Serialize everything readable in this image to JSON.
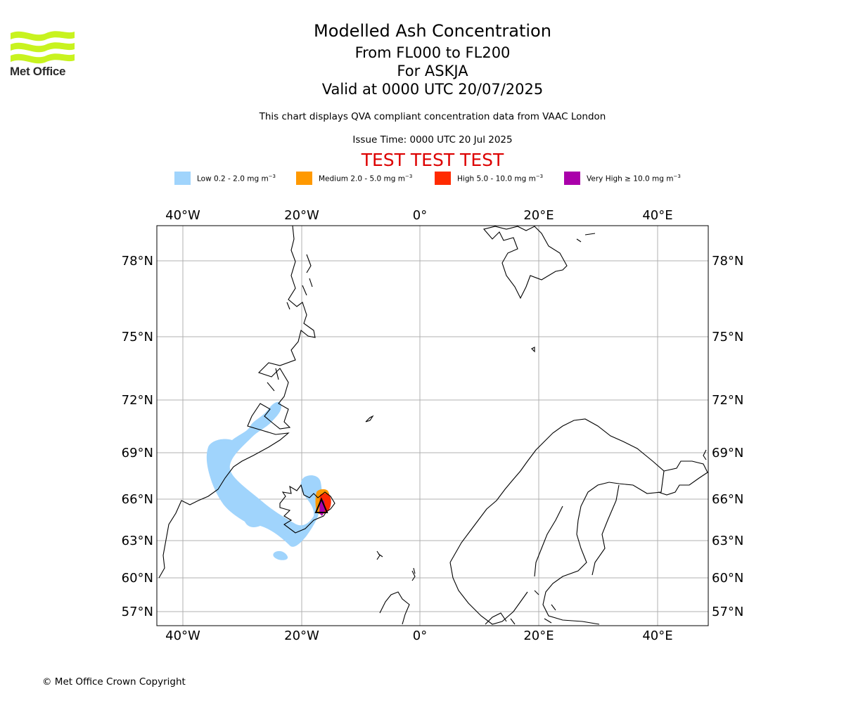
{
  "brand": {
    "name": "Met Office",
    "logo_color": "#c8f31f"
  },
  "header": {
    "title": "Modelled Ash Concentration",
    "levels": "From FL000 to FL200",
    "volcano": "For ASKJA",
    "valid": "Valid at 0000 UTC 20/07/2025",
    "description": "This chart displays QVA compliant concentration data from VAAC London",
    "issue_time": "Issue Time: 0000 UTC 20 Jul 2025",
    "test_banner": "TEST TEST TEST"
  },
  "legend": [
    {
      "label": "Low 0.2 - 2.0 mg m",
      "exp": "−3",
      "color": "#a0d4fc"
    },
    {
      "label": "Medium 2.0 - 5.0 mg m",
      "exp": "−3",
      "color": "#ff9900"
    },
    {
      "label": "High 5.0 - 10.0 mg m",
      "exp": "−3",
      "color": "#ff2a00"
    },
    {
      "label": "Very High  ≥  10.0 mg m",
      "exp": "−3",
      "color": "#aa00aa"
    }
  ],
  "map": {
    "lon_labels": [
      "40°W",
      "20°W",
      "0°",
      "20°E",
      "40°E"
    ],
    "lat_labels": [
      "78°N",
      "75°N",
      "72°N",
      "69°N",
      "66°N",
      "63°N",
      "60°N",
      "57°N"
    ],
    "extent": {
      "lon": [
        -44.4,
        48.4
      ],
      "lat": [
        55.6,
        79.2
      ]
    },
    "gridline_color": "#b0b0b0",
    "coastline_color": "#000000",
    "volcano_marker": "triangle"
  },
  "footer": {
    "copyright": "© Met Office Crown Copyright"
  }
}
